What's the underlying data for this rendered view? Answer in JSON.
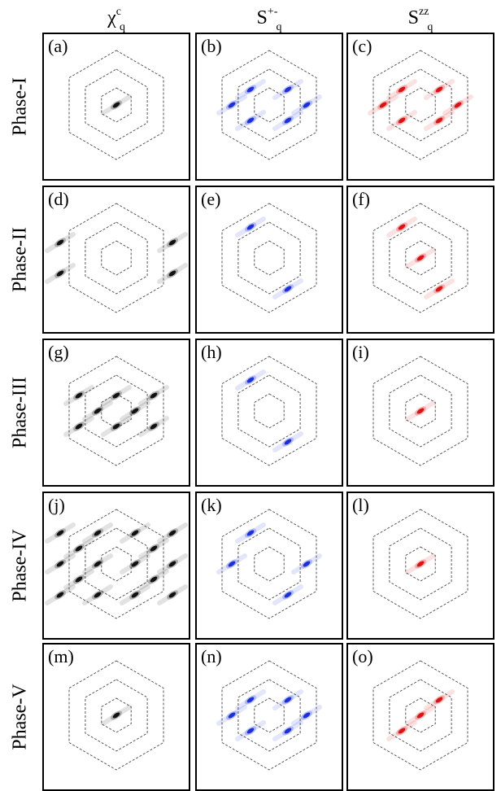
{
  "columns": [
    {
      "base": "χ",
      "sup": "c",
      "sub": "q"
    },
    {
      "base": "S",
      "sup": "+-",
      "sub": "q"
    },
    {
      "base": "S",
      "sup": "zz",
      "sub": "q"
    }
  ],
  "rows": [
    "Phase-I",
    "Phase-II",
    "Phase-III",
    "Phase-IV",
    "Phase-V"
  ],
  "colors": {
    "charge": "#111111",
    "spin_pm": "#1a2fe0",
    "spin_zz": "#e01010",
    "hexagon": "#444444"
  },
  "panels": [
    {
      "label": "(a)",
      "col": 0,
      "peaks": [
        [
          0,
          0
        ]
      ]
    },
    {
      "label": "(b)",
      "col": 1,
      "peaks": [
        [
          -1,
          -1
        ],
        [
          1,
          -1
        ],
        [
          -2,
          0
        ],
        [
          2,
          0
        ],
        [
          -1,
          1
        ],
        [
          1,
          1
        ]
      ]
    },
    {
      "label": "(c)",
      "col": 2,
      "peaks": [
        [
          -1,
          -1
        ],
        [
          1,
          -1
        ],
        [
          -2,
          0
        ],
        [
          2,
          0
        ],
        [
          -1,
          1
        ],
        [
          1,
          1
        ]
      ]
    },
    {
      "label": "(d)",
      "col": 0,
      "peaks": [
        [
          -3,
          -1
        ],
        [
          3,
          -1
        ],
        [
          -3,
          1
        ],
        [
          3,
          1
        ]
      ]
    },
    {
      "label": "(e)",
      "col": 1,
      "peaks": [
        [
          -1,
          -2
        ],
        [
          1,
          2
        ]
      ]
    },
    {
      "label": "(f)",
      "col": 2,
      "peaks": [
        [
          -1,
          -2
        ],
        [
          0,
          0
        ],
        [
          1,
          2
        ]
      ]
    },
    {
      "label": "(g)",
      "col": 0,
      "peaks": [
        [
          -2,
          -1
        ],
        [
          0,
          -1
        ],
        [
          2,
          -1
        ],
        [
          -1,
          0
        ],
        [
          1,
          0
        ],
        [
          -2,
          1
        ],
        [
          0,
          1
        ],
        [
          2,
          1
        ]
      ]
    },
    {
      "label": "(h)",
      "col": 1,
      "peaks": [
        [
          -1,
          -2
        ],
        [
          1,
          2
        ]
      ]
    },
    {
      "label": "(i)",
      "col": 2,
      "peaks": [
        [
          0,
          0
        ]
      ]
    },
    {
      "label": "(j)",
      "col": 0,
      "peaks": [
        [
          -3,
          -2
        ],
        [
          -1,
          -2
        ],
        [
          1,
          -2
        ],
        [
          3,
          -2
        ],
        [
          -2,
          -1
        ],
        [
          2,
          -1
        ],
        [
          -3,
          0
        ],
        [
          -1,
          0
        ],
        [
          1,
          0
        ],
        [
          3,
          0
        ],
        [
          -2,
          1
        ],
        [
          2,
          1
        ],
        [
          -3,
          2
        ],
        [
          -1,
          2
        ],
        [
          1,
          2
        ],
        [
          3,
          2
        ]
      ]
    },
    {
      "label": "(k)",
      "col": 1,
      "peaks": [
        [
          -1,
          -2
        ],
        [
          -2,
          0
        ],
        [
          2,
          0
        ],
        [
          1,
          2
        ]
      ]
    },
    {
      "label": "(l)",
      "col": 2,
      "peaks": [
        [
          0,
          0
        ]
      ]
    },
    {
      "label": "(m)",
      "col": 0,
      "peaks": [
        [
          0,
          0
        ]
      ]
    },
    {
      "label": "(n)",
      "col": 1,
      "peaks": [
        [
          -1,
          -1
        ],
        [
          1,
          -1
        ],
        [
          -2,
          0
        ],
        [
          2,
          0
        ],
        [
          -1,
          1
        ],
        [
          1,
          1
        ]
      ]
    },
    {
      "label": "(o)",
      "col": 2,
      "peaks": [
        [
          0,
          0
        ],
        [
          1,
          -1
        ],
        [
          -1,
          1
        ]
      ]
    }
  ]
}
